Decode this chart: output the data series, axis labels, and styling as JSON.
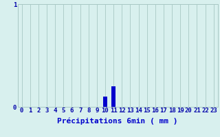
{
  "hours": [
    0,
    1,
    2,
    3,
    4,
    5,
    6,
    7,
    8,
    9,
    10,
    11,
    12,
    13,
    14,
    15,
    16,
    17,
    18,
    19,
    20,
    21,
    22,
    23
  ],
  "values": [
    0,
    0,
    0,
    0,
    0,
    0,
    0,
    0,
    0,
    0,
    0.1,
    0.2,
    0,
    0,
    0,
    0,
    0,
    0,
    0,
    0,
    0,
    0,
    0,
    0
  ],
  "bar_color": "#0000cc",
  "background_color": "#d8f0ee",
  "grid_color": "#a8c8c4",
  "axis_label_color": "#0000cc",
  "tick_color": "#0000aa",
  "xlabel": "Précipitations 6min ( mm )",
  "ylim": [
    0,
    1
  ],
  "xlim": [
    -0.5,
    23.5
  ],
  "yticks": [
    0,
    1
  ],
  "ytick_labels": [
    "0",
    "1"
  ],
  "xtick_labels": [
    "0",
    "1",
    "2",
    "3",
    "4",
    "5",
    "6",
    "7",
    "8",
    "9",
    "10",
    "11",
    "12",
    "13",
    "14",
    "15",
    "16",
    "17",
    "18",
    "19",
    "20",
    "21",
    "22",
    "23"
  ],
  "bar_width": 0.5,
  "xlabel_fontsize": 8,
  "tick_fontsize": 6.5
}
